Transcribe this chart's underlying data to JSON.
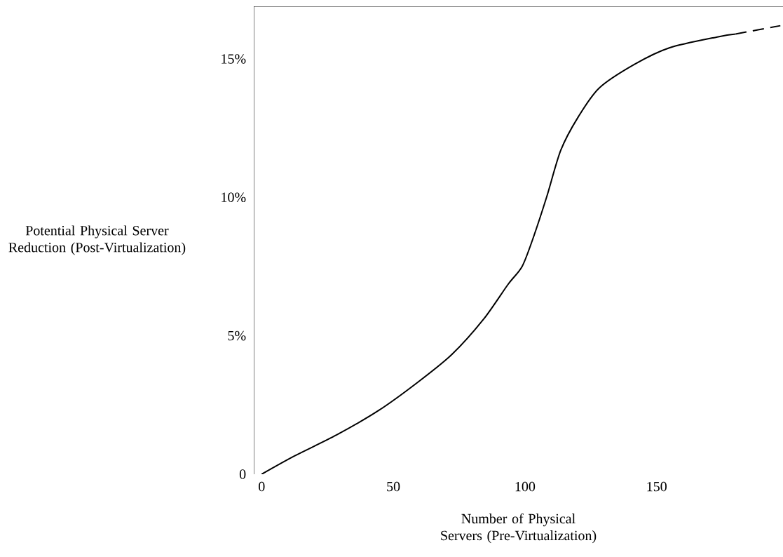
{
  "chart_data": {
    "type": "line",
    "xlabel": "Number of Physical Servers (Pre-Virtualization)",
    "ylabel": "Potential Physical Server Reduction (Post-Virtualization)",
    "xlim": [
      -3,
      198
    ],
    "ylim": [
      0,
      16.9
    ],
    "xticks": [
      0,
      50,
      100,
      150
    ],
    "yticks": [
      0,
      {
        "value": 5,
        "label": "5%"
      },
      {
        "value": 10,
        "label": "10%"
      },
      {
        "value": 15,
        "label": "15%"
      }
    ],
    "marker": "none",
    "series": [
      {
        "color": "#000000",
        "line_style": "solid",
        "x": [
          0,
          12.5,
          28.5,
          44.4,
          59,
          72.3,
          84.3,
          93.6,
          98.9,
          103,
          108.2,
          113.6,
          120.2,
          128.2,
          141.5,
          154.8,
          173.4,
          180
        ],
        "values": [
          0,
          0.66,
          1.42,
          2.3,
          3.3,
          4.33,
          5.6,
          6.86,
          7.5,
          8.5,
          10.0,
          11.7,
          12.9,
          13.95,
          14.8,
          15.4,
          15.8,
          15.9
        ]
      },
      {
        "color": "#000000",
        "line_style": "dashed",
        "x": [
          180,
          197
        ],
        "values": [
          15.9,
          16.2
        ]
      }
    ]
  }
}
